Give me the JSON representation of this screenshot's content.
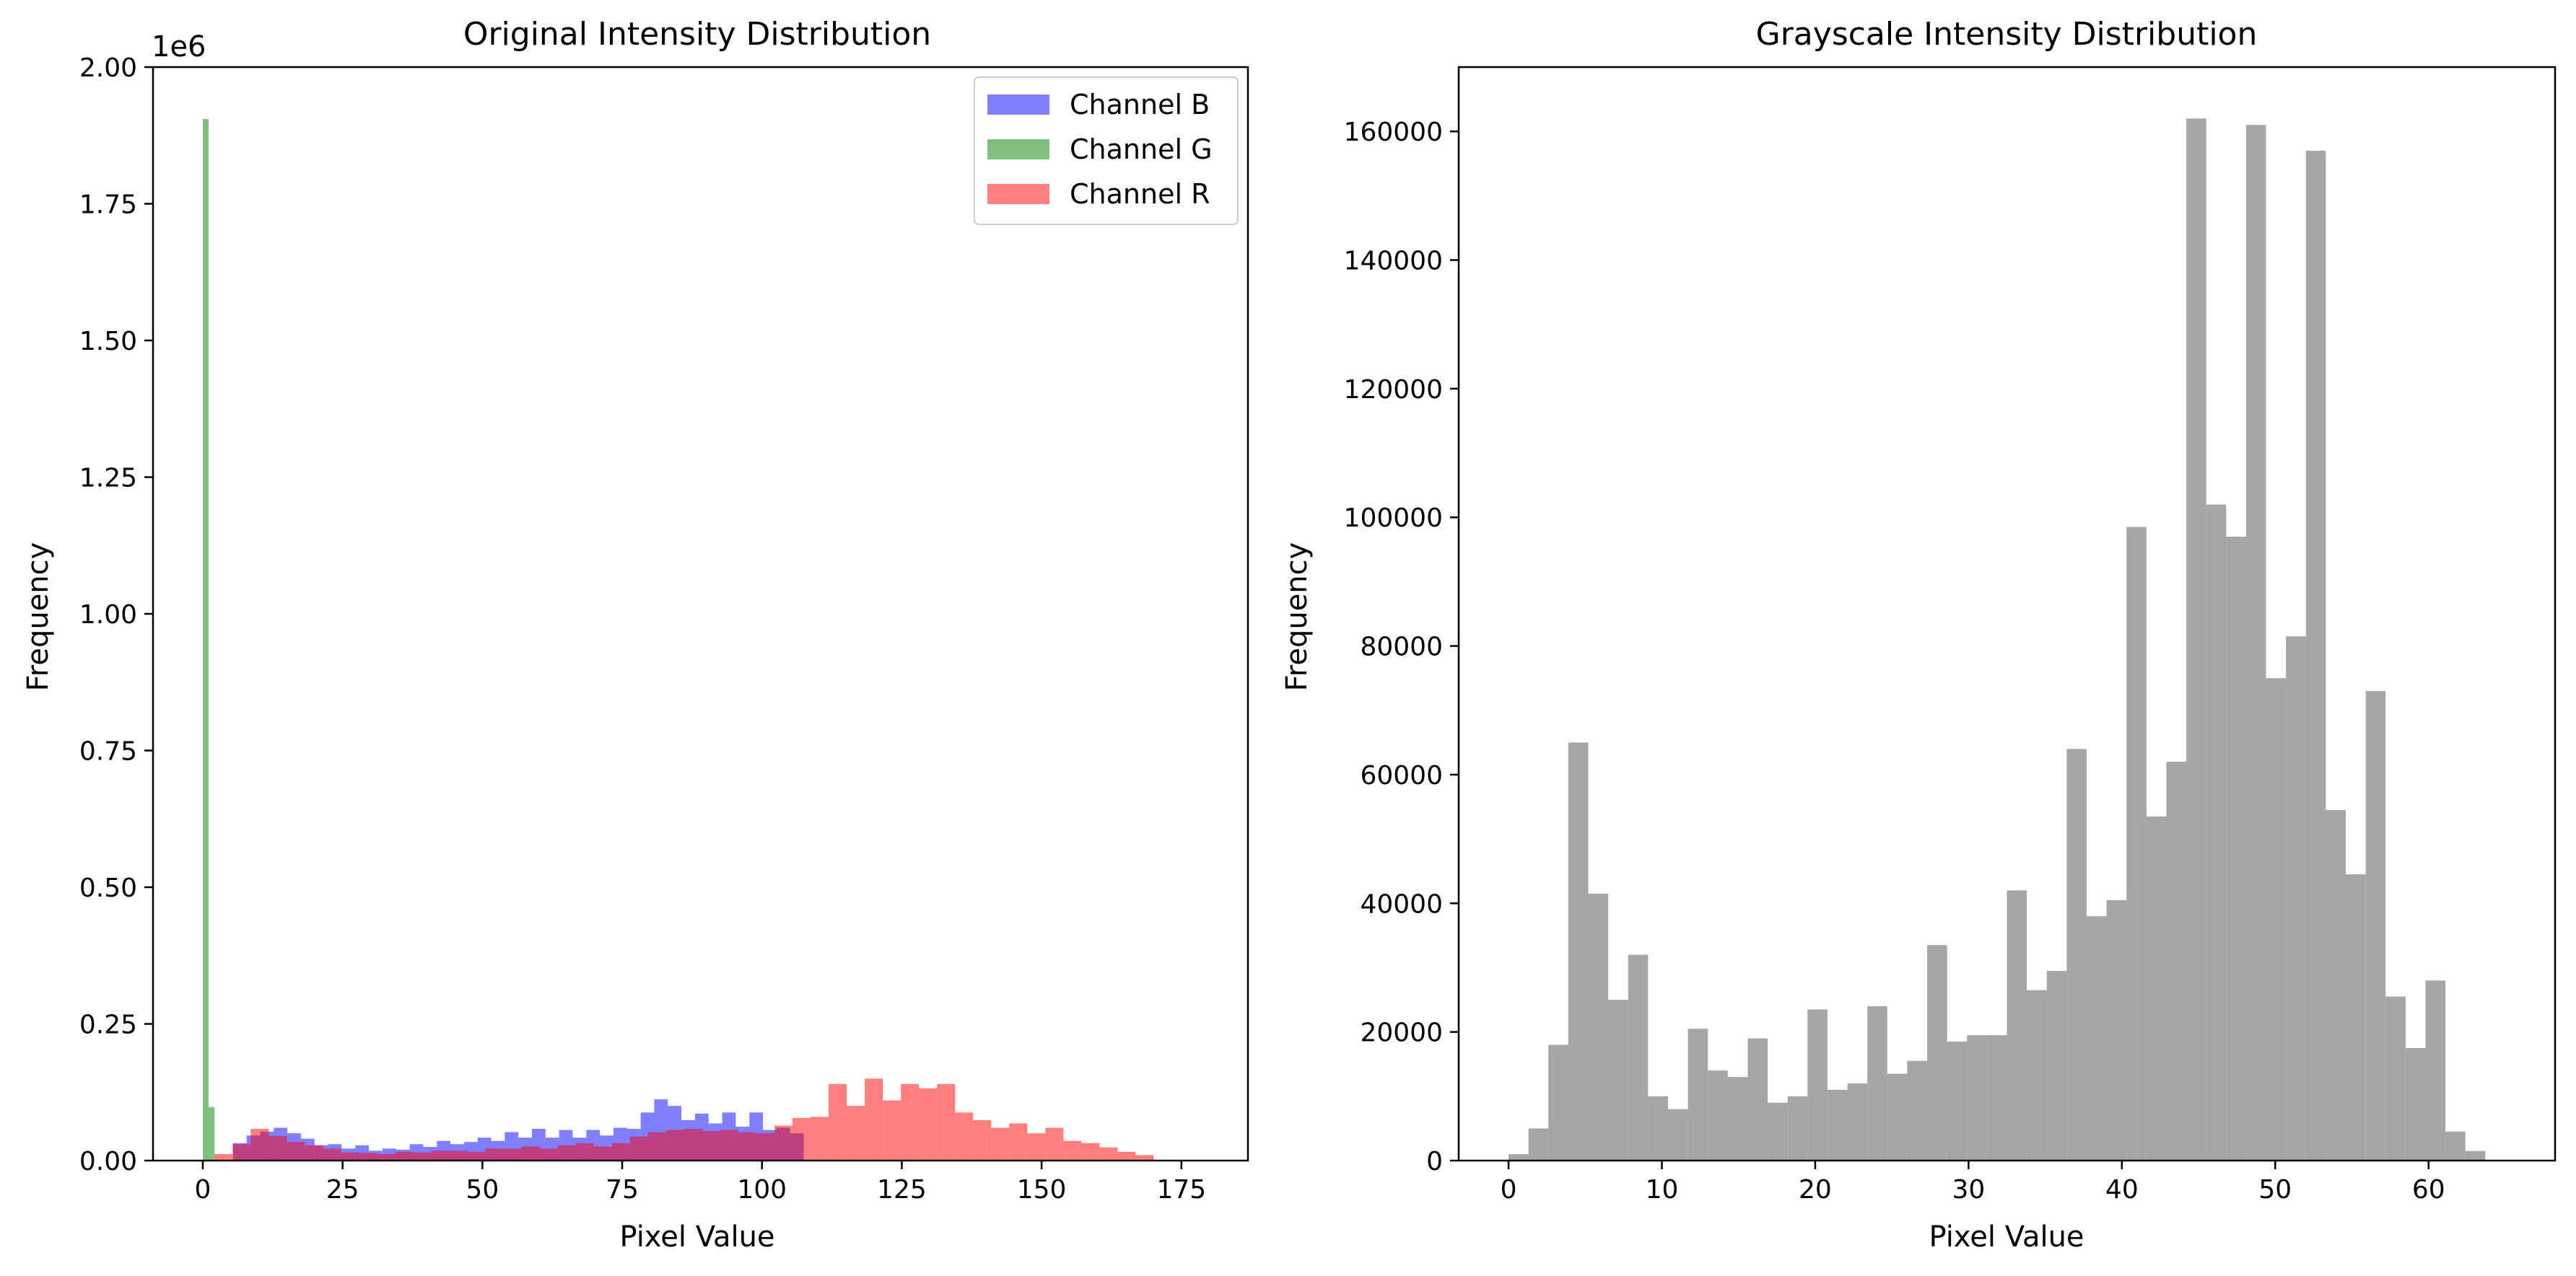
{
  "chart_data": [
    {
      "type": "bar",
      "title": "Original Intensity Distribution",
      "xlabel": "Pixel Value",
      "ylabel": "Frequency",
      "y_offset_label": "1e6",
      "xlim": [
        -8.9,
        186.9
      ],
      "ylim": [
        0,
        2.0
      ],
      "xticks": [
        0,
        25,
        50,
        75,
        100,
        125,
        150,
        175
      ],
      "xtick_labels": [
        "0",
        "25",
        "50",
        "75",
        "100",
        "125",
        "150",
        "175"
      ],
      "yticks": [
        0,
        0.25,
        0.5,
        0.75,
        1.0,
        1.25,
        1.5,
        1.75,
        2.0
      ],
      "ytick_labels": [
        "0.00",
        "0.25",
        "0.50",
        "0.75",
        "1.00",
        "1.25",
        "1.50",
        "1.75",
        "2.00"
      ],
      "grid": false,
      "legend_position": "top-right",
      "bar_alpha": 0.5,
      "series": [
        {
          "name": "Channel B",
          "color": "#0000ff",
          "bin_start": 5.4,
          "bin_width": 2.43,
          "values": [
            0.032,
            0.046,
            0.053,
            0.06,
            0.05,
            0.04,
            0.028,
            0.03,
            0.022,
            0.028,
            0.018,
            0.022,
            0.02,
            0.03,
            0.025,
            0.036,
            0.03,
            0.034,
            0.042,
            0.036,
            0.052,
            0.042,
            0.058,
            0.042,
            0.056,
            0.042,
            0.056,
            0.046,
            0.06,
            0.058,
            0.088,
            0.112,
            0.1,
            0.074,
            0.086,
            0.068,
            0.088,
            0.062,
            0.088,
            0.056,
            0.06,
            0.05
          ]
        },
        {
          "name": "Channel G",
          "color": "#008000",
          "bin_start": 0,
          "bin_width": 1.05,
          "values": [
            1.905,
            0.098
          ]
        },
        {
          "name": "Channel R",
          "color": "#ff0000",
          "bin_start": 2.1,
          "bin_width": 3.23,
          "values": [
            0.012,
            0.03,
            0.058,
            0.045,
            0.034,
            0.028,
            0.022,
            0.015,
            0.014,
            0.012,
            0.016,
            0.015,
            0.018,
            0.018,
            0.016,
            0.022,
            0.022,
            0.026,
            0.022,
            0.028,
            0.032,
            0.026,
            0.032,
            0.044,
            0.052,
            0.056,
            0.058,
            0.054,
            0.056,
            0.052,
            0.05,
            0.064,
            0.078,
            0.08,
            0.14,
            0.1,
            0.15,
            0.11,
            0.14,
            0.132,
            0.14,
            0.088,
            0.074,
            0.06,
            0.068,
            0.05,
            0.06,
            0.036,
            0.032,
            0.024,
            0.016,
            0.01
          ]
        }
      ]
    },
    {
      "type": "bar",
      "title": "Grayscale Intensity Distribution",
      "xlabel": "Pixel Value",
      "ylabel": "Frequency",
      "xlim": [
        -3.25,
        68.25
      ],
      "ylim": [
        0,
        170000
      ],
      "xticks": [
        0,
        10,
        20,
        30,
        40,
        50,
        60
      ],
      "xtick_labels": [
        "0",
        "10",
        "20",
        "30",
        "40",
        "50",
        "60"
      ],
      "yticks": [
        0,
        20000,
        40000,
        60000,
        80000,
        100000,
        120000,
        140000,
        160000
      ],
      "ytick_labels": [
        "0",
        "20000",
        "40000",
        "60000",
        "80000",
        "100000",
        "120000",
        "140000",
        "160000"
      ],
      "grid": false,
      "series": [
        {
          "color": "#808080",
          "alpha": 0.7,
          "bin_start": 0,
          "bin_width": 1.3,
          "values": [
            1000,
            5000,
            18000,
            65000,
            41500,
            25000,
            32000,
            10000,
            8000,
            20500,
            14000,
            13000,
            19000,
            9000,
            10000,
            23500,
            11000,
            12000,
            24000,
            13500,
            15500,
            33500,
            18500,
            19500,
            19500,
            42000,
            26500,
            29500,
            64000,
            38000,
            40500,
            98500,
            53500,
            62000,
            162000,
            102000,
            97000,
            161000,
            75000,
            81500,
            157000,
            54500,
            44500,
            73000,
            25500,
            17500,
            28000,
            4500,
            1500
          ]
        }
      ]
    }
  ]
}
